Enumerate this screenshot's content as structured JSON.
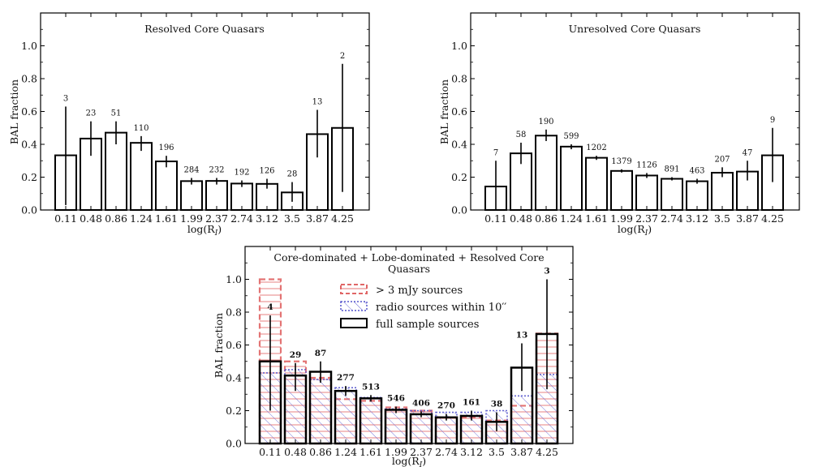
{
  "chart_data": [
    {
      "type": "bar",
      "title": "Resolved Core Quasars",
      "xlabel": "log(R",
      "xlabel_sub": "I",
      "ylabel": "BAL fraction",
      "ylim": [
        0,
        1.2
      ],
      "yticks": [
        "0.0",
        "0.2",
        "0.4",
        "0.6",
        "0.8",
        "1.0"
      ],
      "categories": [
        "0.11",
        "0.48",
        "0.86",
        "1.24",
        "1.61",
        "1.99",
        "2.37",
        "2.74",
        "3.12",
        "3.5",
        "3.87",
        "4.25"
      ],
      "values": [
        0.333,
        0.435,
        0.471,
        0.409,
        0.296,
        0.176,
        0.177,
        0.161,
        0.159,
        0.107,
        0.462,
        0.5
      ],
      "err_low": [
        0.03,
        0.33,
        0.4,
        0.36,
        0.26,
        0.155,
        0.155,
        0.14,
        0.13,
        0.05,
        0.32,
        0.11
      ],
      "err_high": [
        0.63,
        0.54,
        0.54,
        0.45,
        0.33,
        0.195,
        0.195,
        0.18,
        0.19,
        0.17,
        0.61,
        0.89
      ],
      "counts": [
        "3",
        "23",
        "51",
        "110",
        "196",
        "284",
        "232",
        "192",
        "126",
        "28",
        "13",
        "2"
      ]
    },
    {
      "type": "bar",
      "title": "Unresolved Core Quasars",
      "xlabel": "log(R",
      "xlabel_sub": "I",
      "ylabel": "BAL fraction",
      "ylim": [
        0,
        1.2
      ],
      "yticks": [
        "0.0",
        "0.2",
        "0.4",
        "0.6",
        "0.8",
        "1.0"
      ],
      "categories": [
        "0.11",
        "0.48",
        "0.86",
        "1.24",
        "1.61",
        "1.99",
        "2.37",
        "2.74",
        "3.12",
        "3.5",
        "3.87",
        "4.25"
      ],
      "values": [
        0.143,
        0.345,
        0.453,
        0.386,
        0.318,
        0.238,
        0.21,
        0.19,
        0.175,
        0.227,
        0.234,
        0.333
      ],
      "err_low": [
        0.0,
        0.28,
        0.42,
        0.37,
        0.305,
        0.228,
        0.195,
        0.18,
        0.16,
        0.2,
        0.18,
        0.17
      ],
      "err_high": [
        0.3,
        0.41,
        0.49,
        0.4,
        0.33,
        0.248,
        0.225,
        0.2,
        0.19,
        0.26,
        0.3,
        0.5
      ],
      "counts": [
        "7",
        "58",
        "190",
        "599",
        "1202",
        "1379",
        "1126",
        "891",
        "463",
        "207",
        "47",
        "9"
      ]
    },
    {
      "type": "bar",
      "title": "Core-dominated + Lobe-dominated + Resolved Core",
      "title_line2": "Quasars",
      "xlabel": "log(R",
      "xlabel_sub": "I",
      "ylabel": "BAL fraction",
      "ylim": [
        0,
        1.2
      ],
      "yticks": [
        "0.0",
        "0.2",
        "0.4",
        "0.6",
        "0.8",
        "1.0"
      ],
      "categories": [
        "0.11",
        "0.48",
        "0.86",
        "1.24",
        "1.61",
        "1.99",
        "2.37",
        "2.74",
        "3.12",
        "3.5",
        "3.87",
        "4.25"
      ],
      "legend": {
        "position": "top-center",
        "entries": [
          "> 3 mJy sources",
          "radio sources within 10′′",
          "full sample sources"
        ]
      },
      "series": [
        {
          "name": "> 3 mJy sources",
          "color": "#e06666",
          "values": [
            1.0,
            0.5,
            0.4,
            0.27,
            0.26,
            0.22,
            0.2,
            0.16,
            0.16,
            0.14,
            0.23,
            0.67
          ]
        },
        {
          "name": "radio sources within 10′′",
          "color": "#5555cc",
          "values": [
            0.43,
            0.45,
            0.39,
            0.34,
            0.28,
            0.21,
            0.2,
            0.19,
            0.19,
            0.2,
            0.29,
            0.42
          ]
        },
        {
          "name": "full sample sources",
          "color": "#000000",
          "values": [
            0.5,
            0.414,
            0.437,
            0.32,
            0.275,
            0.205,
            0.178,
            0.159,
            0.168,
            0.132,
            0.462,
            0.667
          ],
          "err_low": [
            0.2,
            0.32,
            0.37,
            0.29,
            0.255,
            0.185,
            0.16,
            0.14,
            0.14,
            0.075,
            0.32,
            0.33
          ],
          "err_high": [
            0.78,
            0.49,
            0.5,
            0.35,
            0.295,
            0.225,
            0.195,
            0.18,
            0.2,
            0.19,
            0.61,
            1.0
          ],
          "counts": [
            "4",
            "29",
            "87",
            "277",
            "513",
            "546",
            "406",
            "270",
            "161",
            "38",
            "13",
            "3"
          ]
        }
      ]
    }
  ]
}
